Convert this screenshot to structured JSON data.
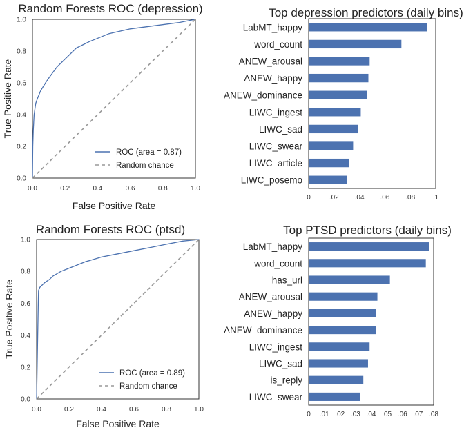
{
  "colors": {
    "roc": "#4c72b0",
    "chance": "#999999",
    "bar": "#4c72b0",
    "frame": "#333333"
  },
  "chart_data": [
    {
      "type": "line",
      "title": "Random Forests ROC (depression)",
      "xlabel": "False Positive Rate",
      "ylabel": "True Positive Rate",
      "xlim": [
        0,
        1
      ],
      "ylim": [
        0,
        1
      ],
      "xticks": [
        "0.0",
        "0.2",
        "0.4",
        "0.6",
        "0.8",
        "1.0"
      ],
      "yticks": [
        "0.0",
        "0.2",
        "0.4",
        "0.6",
        "0.8",
        "1.0"
      ],
      "legend_position": "bottom-right",
      "series": [
        {
          "name": "ROC (area = 0.87)",
          "style": "solid",
          "x": [
            0,
            0.002,
            0.005,
            0.01,
            0.02,
            0.03,
            0.05,
            0.08,
            0.1,
            0.15,
            0.2,
            0.27,
            0.35,
            0.47,
            0.6,
            0.75,
            0.9,
            1.0
          ],
          "y": [
            0,
            0.2,
            0.3,
            0.4,
            0.47,
            0.5,
            0.55,
            0.6,
            0.63,
            0.7,
            0.75,
            0.82,
            0.86,
            0.91,
            0.94,
            0.96,
            0.98,
            1.0
          ]
        },
        {
          "name": "Random chance",
          "style": "dashed",
          "x": [
            0,
            1
          ],
          "y": [
            0,
            1
          ]
        }
      ]
    },
    {
      "type": "bar",
      "orientation": "horizontal",
      "title": "Top depression predictors (daily bins)",
      "categories": [
        "LabMT_happy",
        "word_count",
        "ANEW_arousal",
        "ANEW_happy",
        "ANEW_dominance",
        "LIWC_ingest",
        "LIWC_sad",
        "LIWC_swear",
        "LIWC_article",
        "LIWC_posemo"
      ],
      "values": [
        0.093,
        0.073,
        0.048,
        0.047,
        0.046,
        0.041,
        0.039,
        0.035,
        0.032,
        0.03
      ],
      "xlim": [
        0,
        0.1
      ],
      "xticks": [
        "0",
        ".02",
        ".04",
        ".06",
        ".08",
        ".1"
      ]
    },
    {
      "type": "line",
      "title": "Random Forests ROC (ptsd)",
      "xlabel": "False Positive Rate",
      "ylabel": "True Positive Rate",
      "xlim": [
        0,
        1
      ],
      "ylim": [
        0,
        1
      ],
      "xticks": [
        "0.0",
        "0.2",
        "0.4",
        "0.6",
        "0.8",
        "1.0"
      ],
      "yticks": [
        "0.0",
        "0.2",
        "0.4",
        "0.6",
        "0.8",
        "1.0"
      ],
      "legend_position": "bottom-right",
      "series": [
        {
          "name": "ROC (area = 0.89)",
          "style": "solid",
          "x": [
            0,
            0.005,
            0.01,
            0.012,
            0.02,
            0.05,
            0.08,
            0.1,
            0.15,
            0.2,
            0.3,
            0.4,
            0.5,
            0.6,
            0.7,
            0.8,
            0.9,
            1.0
          ],
          "y": [
            0,
            0.3,
            0.6,
            0.68,
            0.7,
            0.73,
            0.75,
            0.77,
            0.8,
            0.82,
            0.86,
            0.89,
            0.91,
            0.93,
            0.95,
            0.97,
            0.99,
            1.0
          ]
        },
        {
          "name": "Random chance",
          "style": "dashed",
          "x": [
            0,
            1
          ],
          "y": [
            0,
            1
          ]
        }
      ]
    },
    {
      "type": "bar",
      "orientation": "horizontal",
      "title": "Top PTSD predictors (daily bins)",
      "categories": [
        "LabMT_happy",
        "word_count",
        "has_url",
        "ANEW_arousal",
        "ANEW_happy",
        "ANEW_dominance",
        "LIWC_ingest",
        "LIWC_sad",
        "is_reply",
        "LIWC_swear"
      ],
      "values": [
        0.077,
        0.075,
        0.052,
        0.044,
        0.043,
        0.043,
        0.039,
        0.038,
        0.035,
        0.033
      ],
      "xlim": [
        0,
        0.08
      ],
      "xticks": [
        "0",
        ".01",
        ".02",
        ".03",
        ".04",
        ".05",
        ".06",
        ".07",
        ".08"
      ]
    }
  ]
}
